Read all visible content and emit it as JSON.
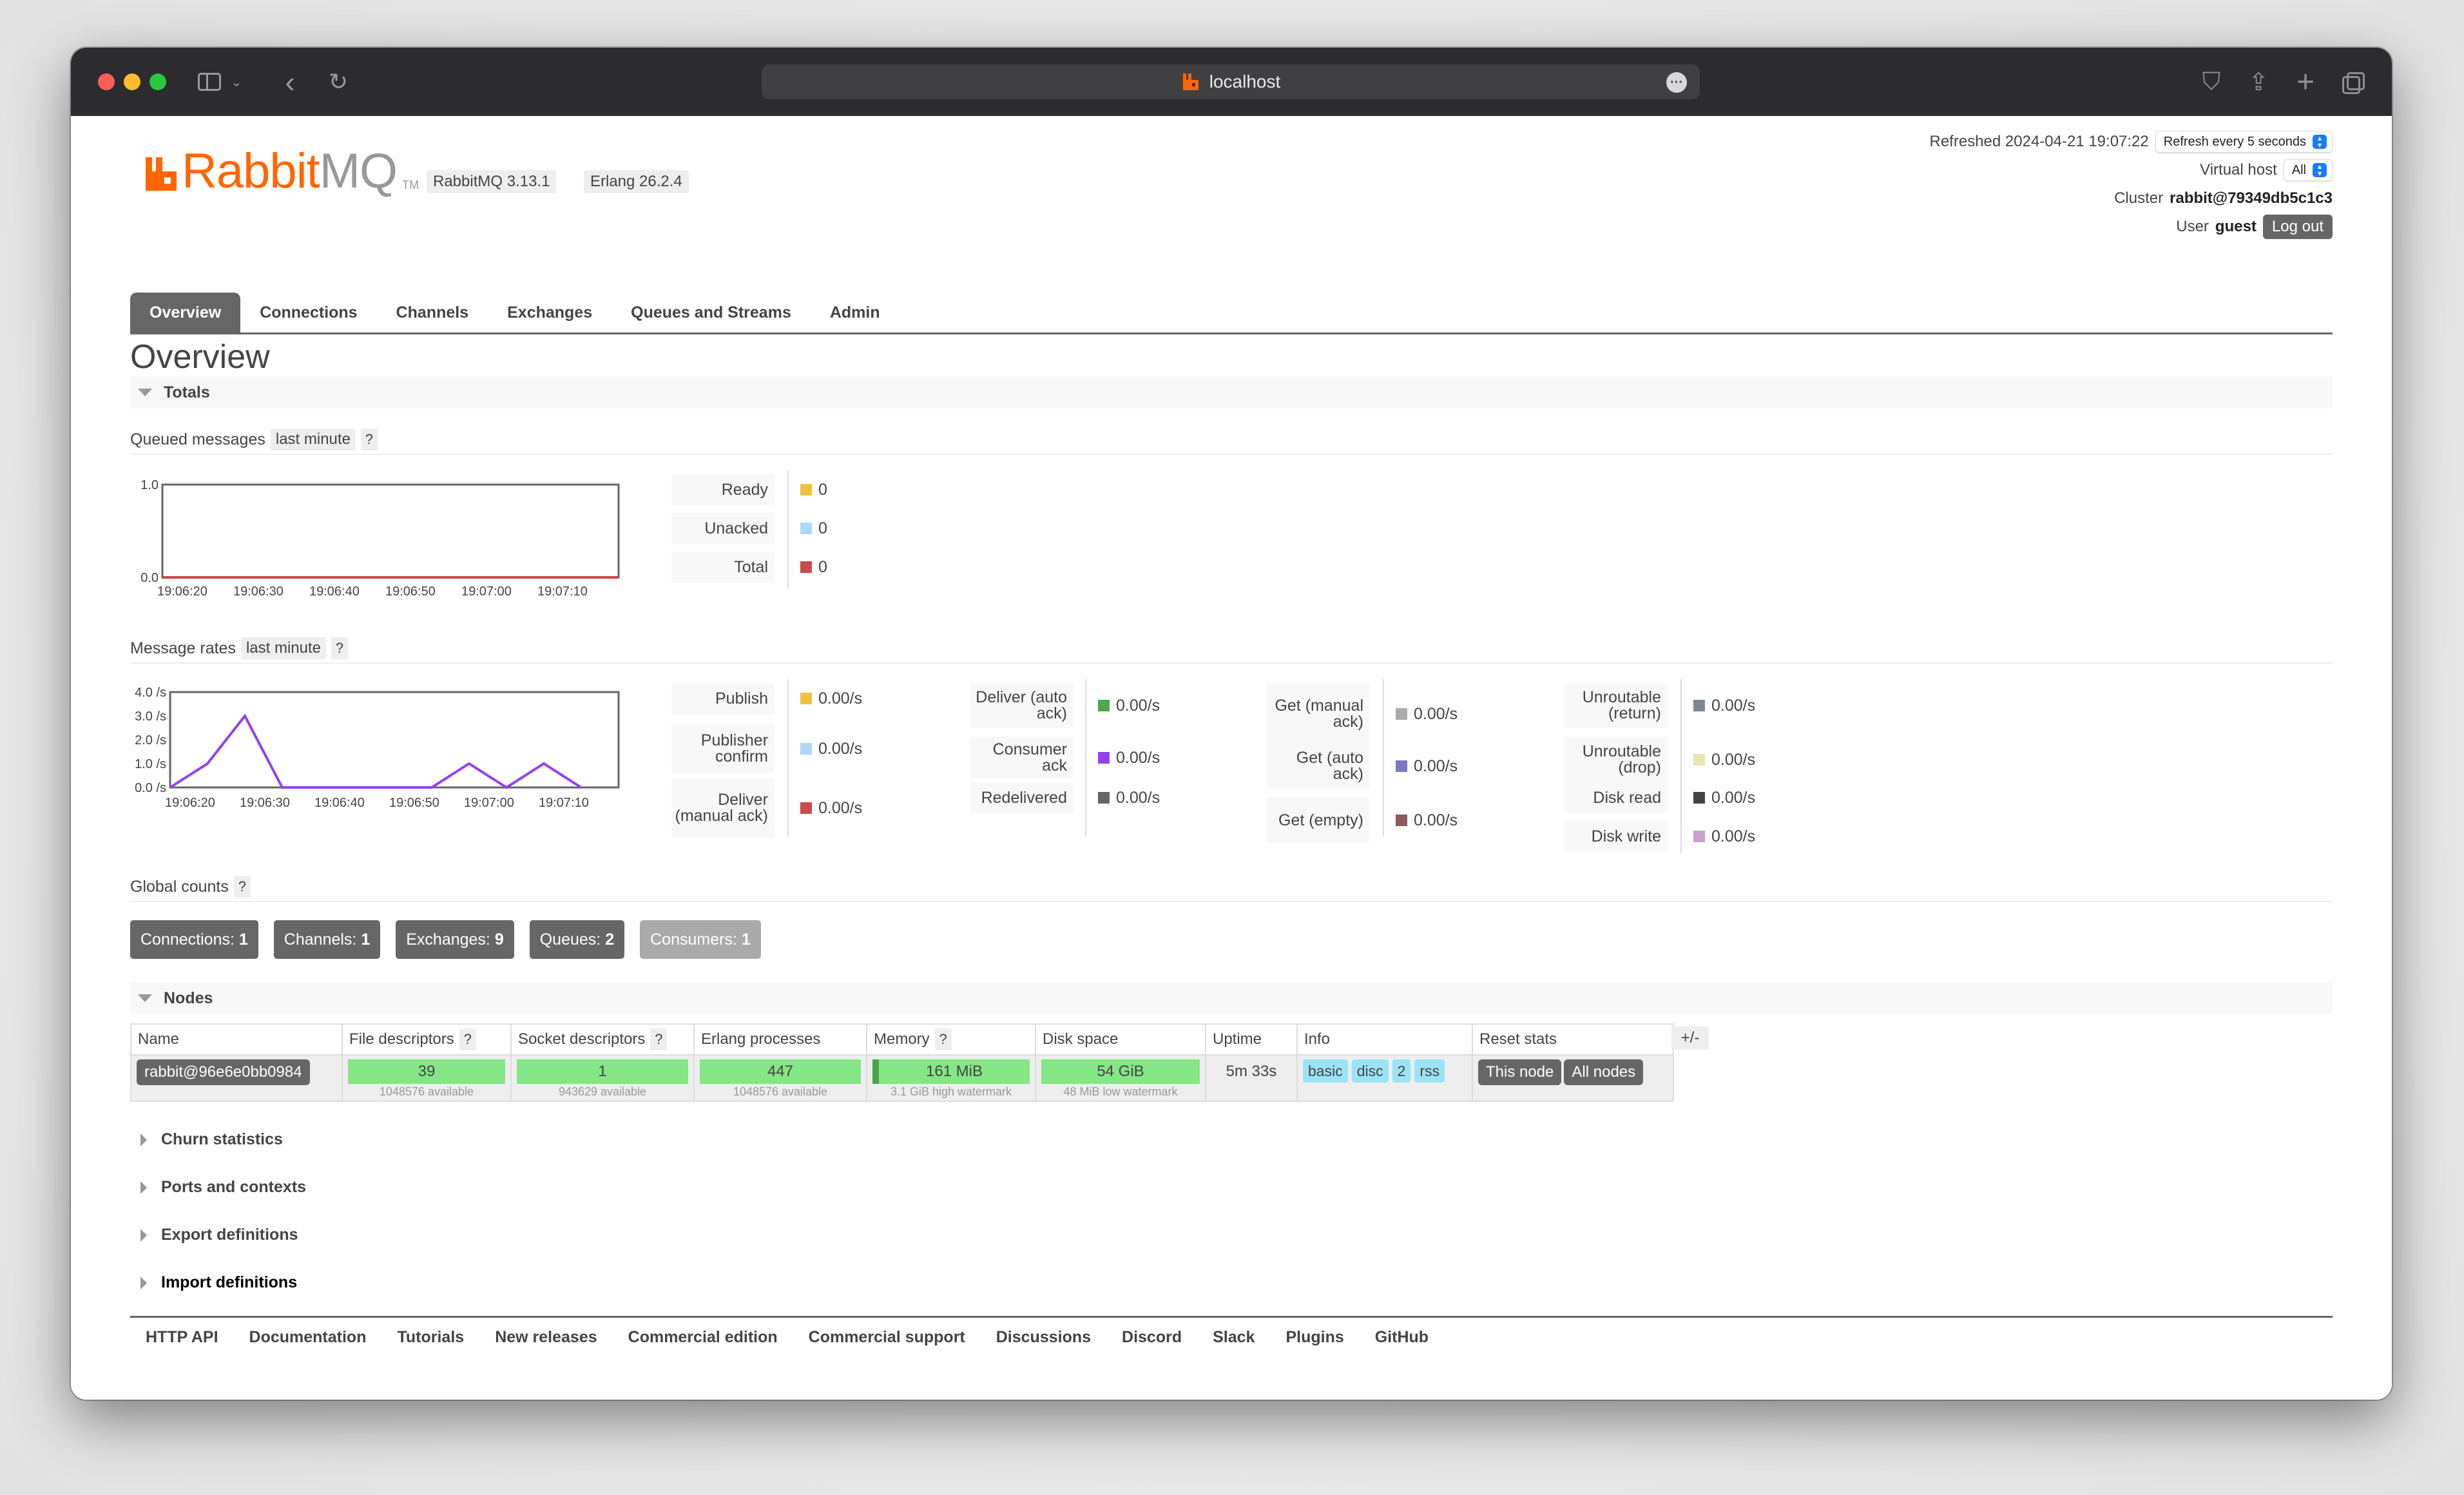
{
  "browser": {
    "url": "localhost"
  },
  "header": {
    "logo_rabbit": "Rabbit",
    "logo_mq": "MQ",
    "logo_tm": "TM",
    "rabbitmq_version": "RabbitMQ 3.13.1",
    "erlang_version": "Erlang 26.2.4",
    "refreshed_label": "Refreshed 2024-04-21 19:07:22",
    "refresh_select": "Refresh every 5 seconds",
    "vhost_label": "Virtual host",
    "vhost_select": "All",
    "cluster_label": "Cluster",
    "cluster_value": "rabbit@79349db5c1c3",
    "user_label": "User",
    "user_value": "guest",
    "logout": "Log out"
  },
  "nav": {
    "tabs": [
      "Overview",
      "Connections",
      "Channels",
      "Exchanges",
      "Queues and Streams",
      "Admin"
    ],
    "active": "Overview"
  },
  "page_title": "Overview",
  "totals": {
    "section_title": "Totals",
    "queued": {
      "label": "Queued messages",
      "range": "last minute",
      "help": "?",
      "legend": [
        {
          "label": "Ready",
          "value": "0",
          "color": "#edc240"
        },
        {
          "label": "Unacked",
          "value": "0",
          "color": "#afd8f8"
        },
        {
          "label": "Total",
          "value": "0",
          "color": "#cb4b4b"
        }
      ]
    },
    "rates": {
      "label": "Message rates",
      "range": "last minute",
      "help": "?",
      "columns": [
        [
          {
            "label": "Publish",
            "value": "0.00/s",
            "color": "#edc240"
          },
          {
            "label": "Publisher confirm",
            "value": "0.00/s",
            "color": "#afd8f8"
          },
          {
            "label": "Deliver (manual ack)",
            "value": "0.00/s",
            "color": "#cb4b4b"
          }
        ],
        [
          {
            "label": "Deliver (auto ack)",
            "value": "0.00/s",
            "color": "#4da74d"
          },
          {
            "label": "Consumer ack",
            "value": "0.00/s",
            "color": "#9440ed"
          },
          {
            "label": "Redelivered",
            "value": "0.00/s",
            "color": "#666666"
          }
        ],
        [
          {
            "label": "Get (manual ack)",
            "value": "0.00/s",
            "color": "#aaaaaa"
          },
          {
            "label": "Get (auto ack)",
            "value": "0.00/s",
            "color": "#7c79c3"
          },
          {
            "label": "Get (empty)",
            "value": "0.00/s",
            "color": "#8f5a5a"
          }
        ],
        [
          {
            "label": "Unroutable (return)",
            "value": "0.00/s",
            "color": "#7a8a95"
          },
          {
            "label": "Unroutable (drop)",
            "value": "0.00/s",
            "color": "#e6e6b3"
          },
          {
            "label": "Disk read",
            "value": "0.00/s",
            "color": "#444444"
          },
          {
            "label": "Disk write",
            "value": "0.00/s",
            "color": "#c8a0d0"
          }
        ]
      ]
    },
    "global_counts_label": "Global counts",
    "global_counts_help": "?",
    "counts": [
      {
        "label": "Connections:",
        "value": "1"
      },
      {
        "label": "Channels:",
        "value": "1"
      },
      {
        "label": "Exchanges:",
        "value": "9"
      },
      {
        "label": "Queues:",
        "value": "2"
      },
      {
        "label": "Consumers:",
        "value": "1"
      }
    ]
  },
  "chart_data": [
    {
      "type": "line",
      "x": [
        "19:06:20",
        "19:06:30",
        "19:06:40",
        "19:06:50",
        "19:07:00",
        "19:07:10"
      ],
      "ylim": [
        0.0,
        1.0
      ],
      "yticks": [
        "1.0",
        "0.0"
      ],
      "series": [
        {
          "values": [
            0,
            0,
            0,
            0,
            0,
            0
          ],
          "color": "#cb4b4b"
        }
      ]
    },
    {
      "type": "line",
      "x": [
        "19:06:20",
        "19:06:30",
        "19:06:40",
        "19:06:50",
        "19:07:00",
        "19:07:10"
      ],
      "ylim": [
        0.0,
        4.0
      ],
      "yticks": [
        "4.0 /s",
        "3.0 /s",
        "2.0 /s",
        "1.0 /s",
        "0.0 /s"
      ],
      "series": [
        {
          "color": "#9440ed",
          "points": [
            [
              0,
              0
            ],
            [
              5,
              1
            ],
            [
              10,
              3
            ],
            [
              15,
              0
            ],
            [
              20,
              0
            ],
            [
              25,
              0
            ],
            [
              35,
              0
            ],
            [
              40,
              1
            ],
            [
              45,
              0
            ],
            [
              50,
              1
            ],
            [
              55,
              0
            ]
          ]
        }
      ]
    }
  ],
  "nodes": {
    "section_title": "Nodes",
    "columns": [
      "Name",
      "File descriptors",
      "Socket descriptors",
      "Erlang processes",
      "Memory",
      "Disk space",
      "Uptime",
      "Info",
      "Reset stats"
    ],
    "column_help": "?",
    "plusminus": "+/-",
    "row": {
      "name": "rabbit@96e6e0bb0984",
      "fd": "39",
      "fd_note": "1048576 available",
      "sockets": "1",
      "sockets_note": "943629 available",
      "procs": "447",
      "procs_note": "1048576 available",
      "memory": "161 MiB",
      "memory_note": "3.1 GiB high watermark",
      "disk": "54 GiB",
      "disk_note": "48 MiB low watermark",
      "uptime": "5m 33s",
      "info": [
        "basic",
        "disc",
        "2",
        "rss"
      ],
      "reset": [
        "This node",
        "All nodes"
      ]
    }
  },
  "collapsed_sections": [
    "Churn statistics",
    "Ports and contexts",
    "Export definitions",
    "Import definitions"
  ],
  "footer": [
    "HTTP API",
    "Documentation",
    "Tutorials",
    "New releases",
    "Commercial edition",
    "Commercial support",
    "Discussions",
    "Discord",
    "Slack",
    "Plugins",
    "GitHub"
  ]
}
